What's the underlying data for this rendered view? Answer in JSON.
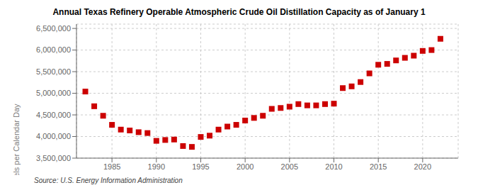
{
  "chart_data": {
    "type": "scatter",
    "title": "Annual Texas Refinery Operable Atmospheric Crude Oil Distillation Capacity as of January 1",
    "ylabel": "Barrels per Calendar Day",
    "source": "Source: U.S. Energy Information Administration",
    "x": [
      1982,
      1983,
      1984,
      1985,
      1986,
      1987,
      1988,
      1989,
      1990,
      1991,
      1992,
      1993,
      1994,
      1995,
      1996,
      1997,
      1998,
      1999,
      2000,
      2001,
      2002,
      2003,
      2004,
      2005,
      2006,
      2007,
      2008,
      2009,
      2010,
      2011,
      2012,
      2013,
      2014,
      2015,
      2016,
      2017,
      2018,
      2019,
      2020,
      2021,
      2022
    ],
    "values": [
      5040000,
      4700000,
      4480000,
      4270000,
      4160000,
      4140000,
      4100000,
      4080000,
      3900000,
      3920000,
      3930000,
      3780000,
      3760000,
      3990000,
      4020000,
      4160000,
      4230000,
      4270000,
      4370000,
      4430000,
      4480000,
      4640000,
      4660000,
      4690000,
      4750000,
      4720000,
      4720000,
      4750000,
      4760000,
      5120000,
      5160000,
      5260000,
      5460000,
      5660000,
      5680000,
      5760000,
      5820000,
      5870000,
      5980000,
      6000000,
      6260000
    ],
    "color": "#cc0000",
    "marker": "square",
    "xlim": [
      1981,
      2024
    ],
    "xticks": [
      1985,
      1990,
      1995,
      2000,
      2005,
      2010,
      2015,
      2020
    ],
    "ylim": [
      3500000,
      6600000
    ],
    "yticks": [
      {
        "value": 3500000,
        "label": "3,500,000"
      },
      {
        "value": 4000000,
        "label": "4,000,000"
      },
      {
        "value": 4500000,
        "label": "4,500,000"
      },
      {
        "value": 5000000,
        "label": "5,000,000"
      },
      {
        "value": 5500000,
        "label": "5,500,000"
      },
      {
        "value": 6000000,
        "label": "6,000,000"
      },
      {
        "value": 6500000,
        "label": "6,500,000"
      }
    ],
    "grid": true
  }
}
